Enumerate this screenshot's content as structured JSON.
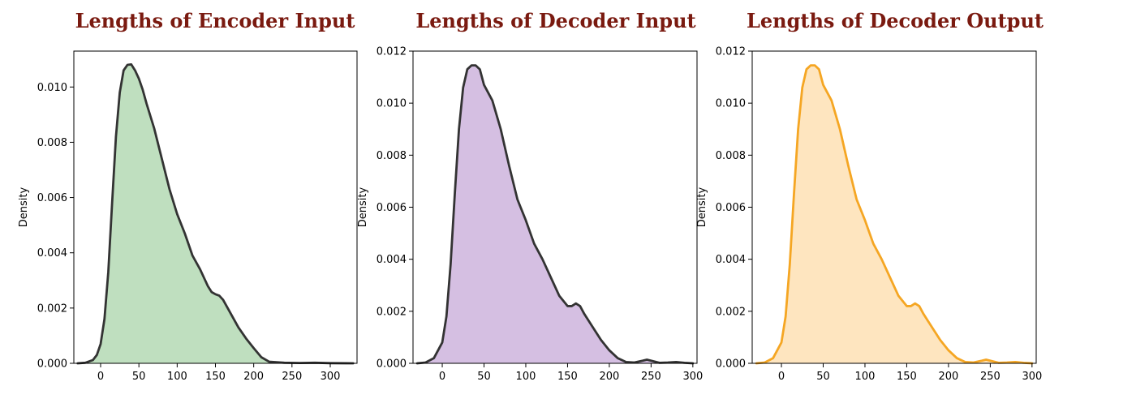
{
  "colors": {
    "title": "#7a1a10",
    "panel_fills": [
      "#bfdfbf",
      "#d5bfe2",
      "#fee5bf"
    ],
    "panel_lines": [
      "#333333",
      "#333333",
      "#f5a623"
    ]
  },
  "chart_data": [
    {
      "type": "area",
      "title": "Lengths of Encoder Input",
      "xlabel": "",
      "ylabel": "Density",
      "xlim": [
        -35,
        335
      ],
      "ylim": [
        0,
        0.0113
      ],
      "xticks": [
        0,
        50,
        100,
        150,
        200,
        250,
        300
      ],
      "xtick_labels": [
        "0",
        "50",
        "100",
        "150",
        "200",
        "250",
        "300"
      ],
      "yticks": [
        0,
        0.002,
        0.004,
        0.006,
        0.008,
        0.01
      ],
      "ytick_labels": [
        "0.000",
        "0.002",
        "0.004",
        "0.006",
        "0.008",
        "0.010"
      ],
      "grid": false,
      "x": [
        -30,
        -20,
        -10,
        -5,
        0,
        5,
        10,
        15,
        20,
        25,
        30,
        35,
        40,
        45,
        50,
        55,
        60,
        70,
        80,
        90,
        100,
        110,
        120,
        130,
        140,
        145,
        150,
        155,
        160,
        170,
        180,
        190,
        200,
        210,
        220,
        240,
        260,
        280,
        300,
        320,
        330
      ],
      "y": [
        0,
        2e-05,
        0.00012,
        0.0003,
        0.0007,
        0.0016,
        0.0033,
        0.0058,
        0.0082,
        0.0098,
        0.0106,
        0.0108,
        0.01082,
        0.0106,
        0.0103,
        0.0099,
        0.0094,
        0.0085,
        0.0074,
        0.0063,
        0.0054,
        0.0047,
        0.0039,
        0.0034,
        0.0028,
        0.00258,
        0.0025,
        0.00245,
        0.0023,
        0.0018,
        0.0013,
        0.0009,
        0.00055,
        0.00022,
        6e-05,
        2e-05,
        1e-05,
        2e-05,
        5e-06,
        2e-06,
        0
      ]
    },
    {
      "type": "area",
      "title": "Lengths of Decoder Input",
      "xlabel": "",
      "ylabel": "Density",
      "xlim": [
        -35,
        305
      ],
      "ylim": [
        0,
        0.012
      ],
      "xticks": [
        0,
        50,
        100,
        150,
        200,
        250,
        300
      ],
      "xtick_labels": [
        "0",
        "50",
        "100",
        "150",
        "200",
        "250",
        "300"
      ],
      "yticks": [
        0,
        0.002,
        0.004,
        0.006,
        0.008,
        0.01,
        0.012
      ],
      "ytick_labels": [
        "0.000",
        "0.002",
        "0.004",
        "0.006",
        "0.008",
        "0.010",
        "0.012"
      ],
      "grid": false,
      "x": [
        -30,
        -20,
        -10,
        0,
        5,
        10,
        15,
        20,
        25,
        30,
        35,
        40,
        45,
        50,
        55,
        60,
        70,
        80,
        90,
        100,
        110,
        120,
        130,
        140,
        150,
        155,
        160,
        165,
        170,
        180,
        190,
        200,
        210,
        220,
        230,
        240,
        245,
        250,
        260,
        270,
        280,
        290,
        300
      ],
      "y": [
        0,
        3e-05,
        0.0002,
        0.0008,
        0.0018,
        0.0038,
        0.0065,
        0.009,
        0.0106,
        0.0113,
        0.01145,
        0.01145,
        0.0113,
        0.0107,
        0.0104,
        0.0101,
        0.009,
        0.0076,
        0.0063,
        0.0055,
        0.0046,
        0.004,
        0.0033,
        0.0026,
        0.0022,
        0.0022,
        0.0023,
        0.0022,
        0.0019,
        0.0014,
        0.0009,
        0.0005,
        0.0002,
        5e-05,
        3e-05,
        0.0001,
        0.00014,
        0.0001,
        2e-05,
        3e-05,
        5e-05,
        2e-05,
        0
      ]
    },
    {
      "type": "area",
      "title": "Lengths of Decoder Output",
      "xlabel": "",
      "ylabel": "Density",
      "xlim": [
        -35,
        305
      ],
      "ylim": [
        0,
        0.012
      ],
      "xticks": [
        0,
        50,
        100,
        150,
        200,
        250,
        300
      ],
      "xtick_labels": [
        "0",
        "50",
        "100",
        "150",
        "200",
        "250",
        "300"
      ],
      "yticks": [
        0,
        0.002,
        0.004,
        0.006,
        0.008,
        0.01,
        0.012
      ],
      "ytick_labels": [
        "0.000",
        "0.002",
        "0.004",
        "0.006",
        "0.008",
        "0.010",
        "0.012"
      ],
      "grid": false,
      "x": [
        -30,
        -20,
        -10,
        0,
        5,
        10,
        15,
        20,
        25,
        30,
        35,
        40,
        45,
        50,
        55,
        60,
        70,
        80,
        90,
        100,
        110,
        120,
        130,
        140,
        150,
        155,
        160,
        165,
        170,
        180,
        190,
        200,
        210,
        220,
        230,
        240,
        245,
        250,
        260,
        270,
        280,
        290,
        300
      ],
      "y": [
        0,
        3e-05,
        0.0002,
        0.0008,
        0.0018,
        0.0038,
        0.0065,
        0.009,
        0.0106,
        0.0113,
        0.01145,
        0.01145,
        0.0113,
        0.0107,
        0.0104,
        0.0101,
        0.009,
        0.0076,
        0.0063,
        0.0055,
        0.0046,
        0.004,
        0.0033,
        0.0026,
        0.0022,
        0.0022,
        0.0023,
        0.0022,
        0.0019,
        0.0014,
        0.0009,
        0.0005,
        0.0002,
        5e-05,
        3e-05,
        0.0001,
        0.00014,
        0.0001,
        2e-05,
        3e-05,
        5e-05,
        2e-05,
        0
      ]
    }
  ]
}
